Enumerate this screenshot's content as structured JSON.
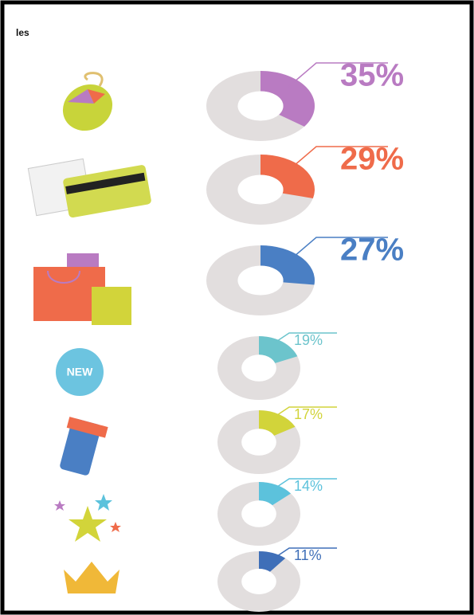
{
  "chart_data": {
    "type": "donut",
    "title": "les",
    "values": [
      35,
      29,
      27,
      19,
      17,
      14,
      11
    ],
    "value_labels": [
      "35%",
      "29%",
      "27%",
      "19%",
      "17%",
      "14%",
      "11%"
    ],
    "colors": [
      "#b97bc2",
      "#ef6b4a",
      "#4a7fc4",
      "#6cc4cc",
      "#d2d43a",
      "#5cc2dc",
      "#3f6fb8"
    ]
  }
}
